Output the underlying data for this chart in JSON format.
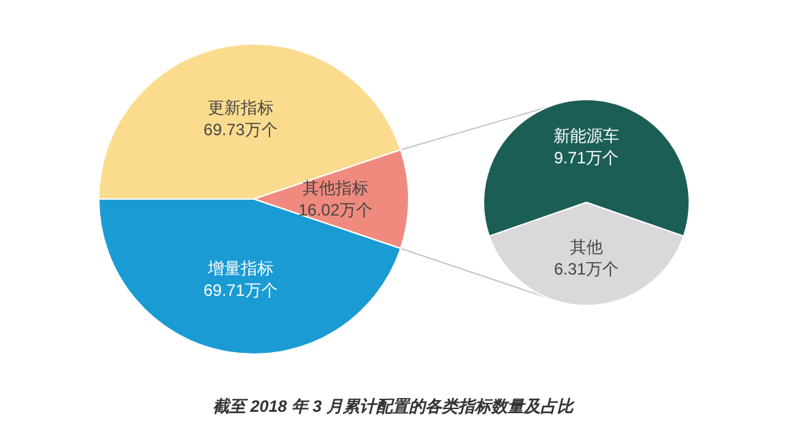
{
  "chart_data": [
    {
      "type": "pie",
      "categories": [
        "更新指标",
        "其他指标",
        "增量指标"
      ],
      "values": [
        69.73,
        16.02,
        69.71
      ],
      "colors": [
        "#fbdc8e",
        "#f08a7e",
        "#1a9bd4"
      ],
      "value_labels": [
        "69.73万个",
        "16.02万个",
        "69.71万个"
      ],
      "legend": false,
      "annotations": [
        "截至 2018 年 3 月累计配置的各类指标数量及占比"
      ]
    },
    {
      "type": "pie",
      "categories": [
        "新能源车",
        "其他"
      ],
      "values": [
        9.71,
        6.31
      ],
      "colors": [
        "#1b5e55",
        "#d9d9db"
      ],
      "value_labels": [
        "9.71万个",
        "6.31万个"
      ],
      "legend": false
    }
  ]
}
